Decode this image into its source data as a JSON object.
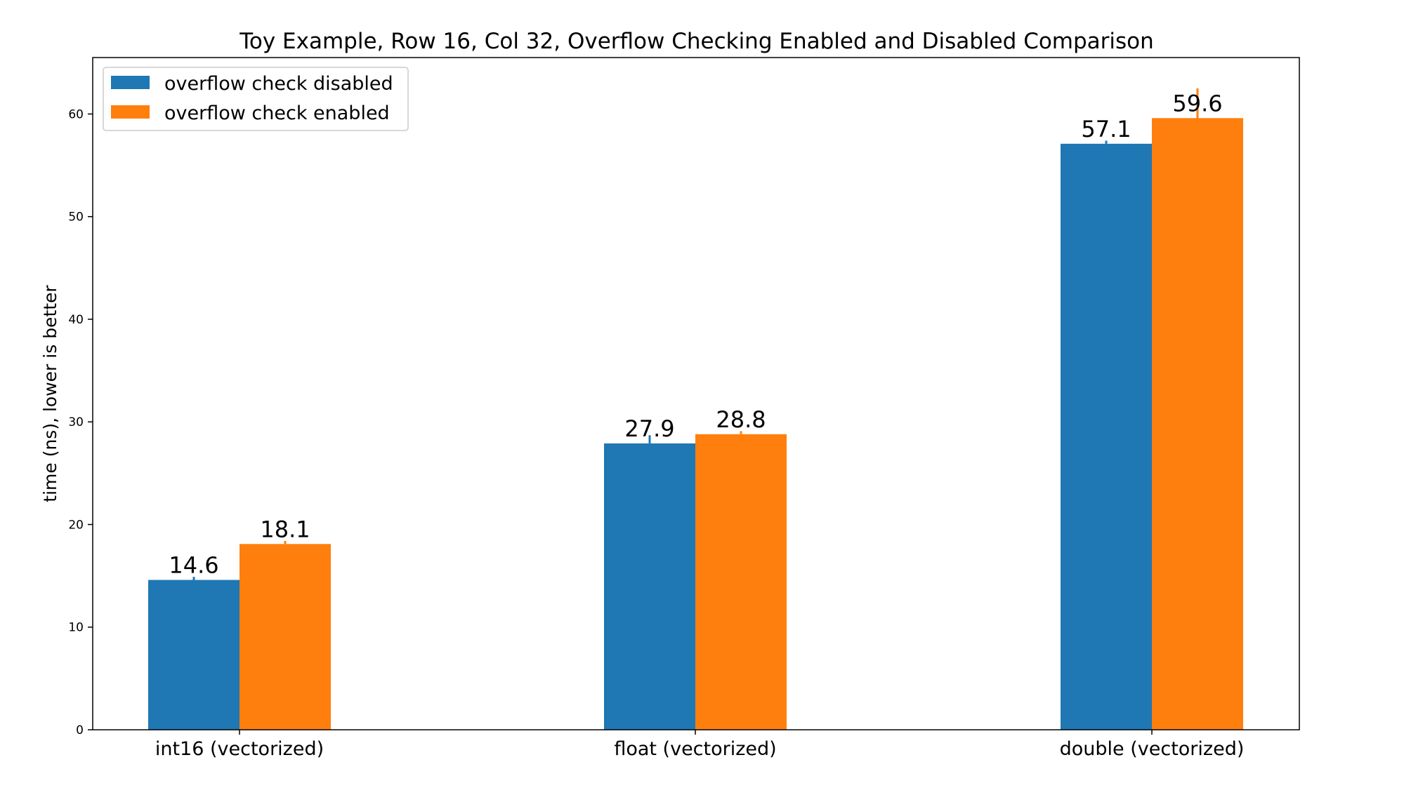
{
  "chart_data": {
    "type": "bar",
    "title": "Toy Example, Row 16, Col 32, Overflow Checking Enabled and Disabled Comparison",
    "xlabel": "",
    "ylabel": "time (ns), lower is better",
    "categories": [
      "int16 (vectorized)",
      "float (vectorized)",
      "double (vectorized)"
    ],
    "series": [
      {
        "name": "overflow check disabled",
        "color": "#1f77b4",
        "values": [
          14.6,
          27.9,
          57.1
        ],
        "labels": [
          "14.6",
          "27.9",
          "57.1"
        ],
        "error_lower": [
          14.6,
          27.9,
          57.1
        ],
        "error_upper": [
          14.9,
          28.7,
          57.4
        ]
      },
      {
        "name": "overflow check enabled",
        "color": "#ff7f0e",
        "values": [
          18.1,
          28.8,
          59.6
        ],
        "labels": [
          "18.1",
          "28.8",
          "59.6"
        ],
        "error_lower": [
          18.1,
          28.8,
          59.0
        ],
        "error_upper": [
          18.4,
          29.1,
          62.5
        ]
      }
    ],
    "ylim": [
      0,
      65.5
    ],
    "yticks": [
      0,
      10,
      20,
      30,
      40,
      50,
      60
    ],
    "ytick_labels": [
      "0",
      "10",
      "20",
      "30",
      "40",
      "50",
      "60"
    ],
    "grid": false,
    "legend": "top-left"
  }
}
